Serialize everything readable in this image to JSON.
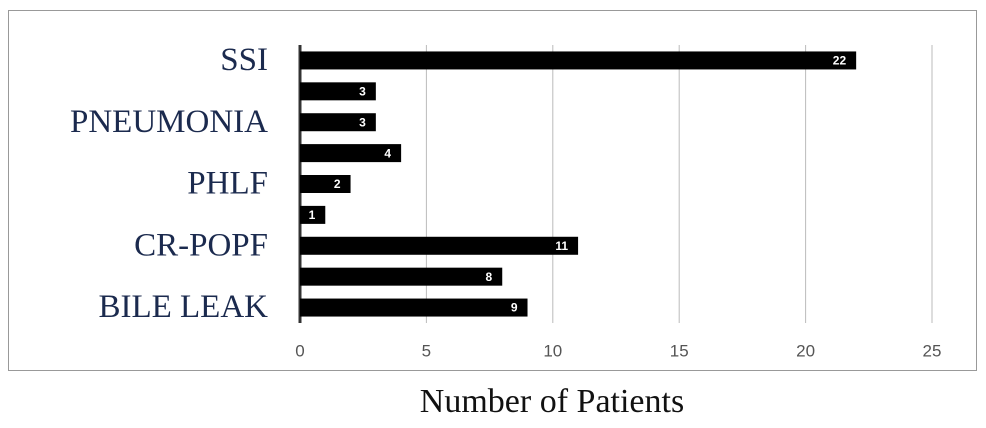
{
  "chart_data": {
    "type": "hbar",
    "x_label": "Number of Patients",
    "categories": [
      "SSI",
      null,
      "PNEUMONIA",
      null,
      "PHLF",
      null,
      "CR-POPF",
      null,
      "BILE LEAK"
    ],
    "values": [
      22,
      3,
      3,
      4,
      2,
      1,
      11,
      8,
      9
    ],
    "color": "#000000",
    "xlim": [
      0,
      25
    ],
    "xticks": [
      0,
      5,
      10,
      15,
      20,
      25
    ],
    "grid": true
  }
}
